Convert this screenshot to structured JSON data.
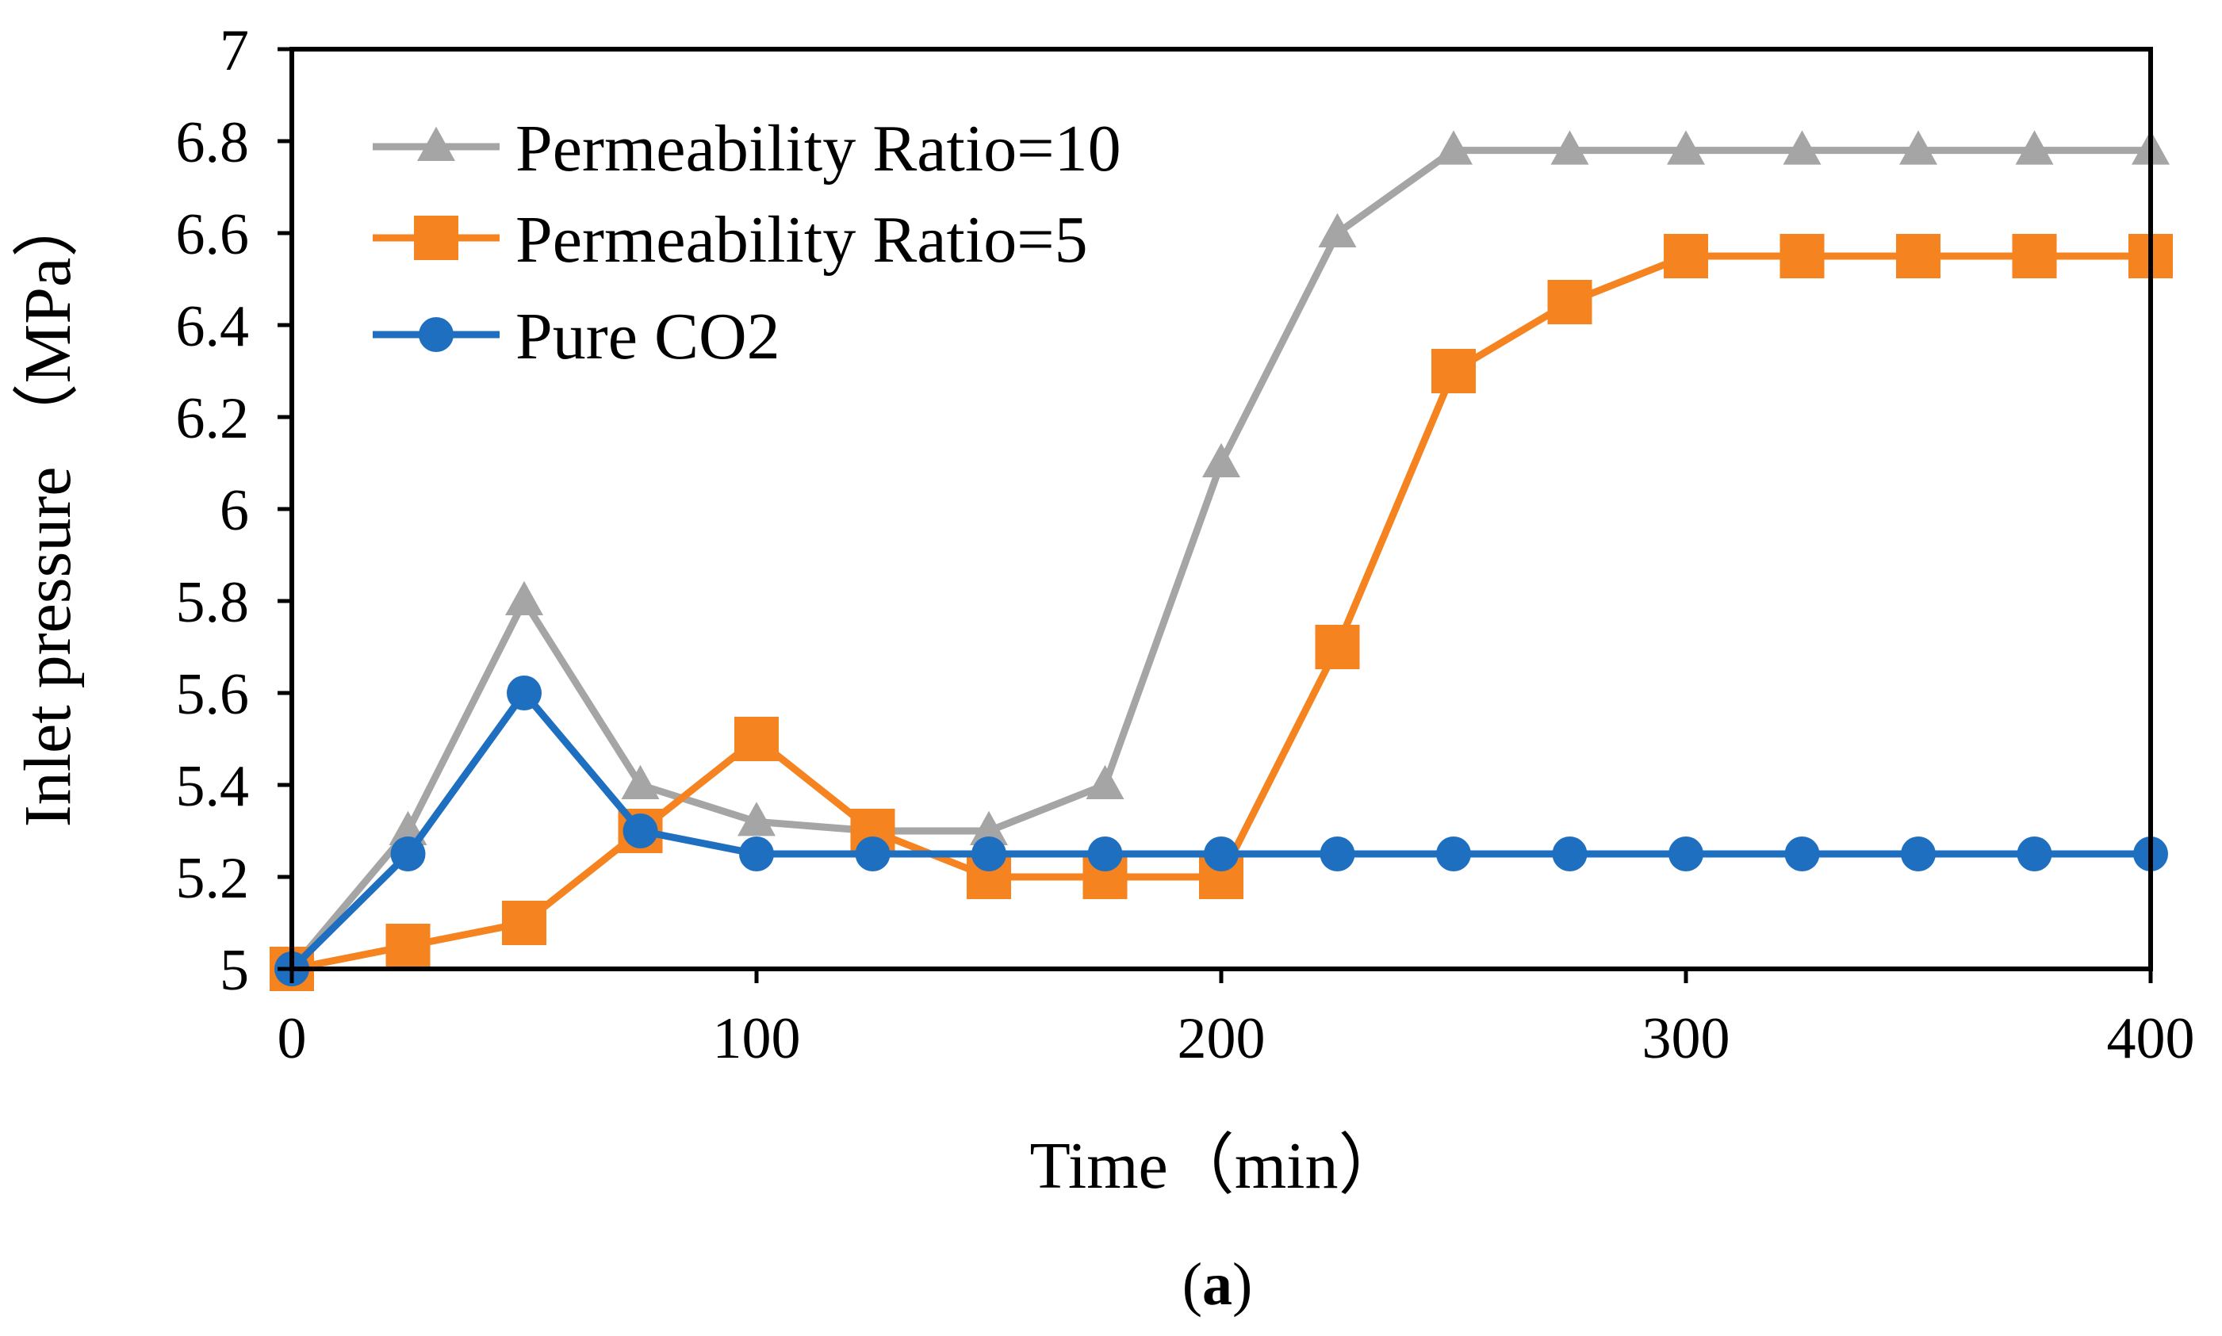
{
  "chart_data": {
    "type": "line",
    "title": "",
    "xlabel": "Time（min）",
    "ylabel": "Inlet pressure （MPa）",
    "xlim": [
      0,
      400
    ],
    "ylim": [
      5,
      7
    ],
    "xticks": [
      0,
      100,
      200,
      300,
      400
    ],
    "yticks": [
      5,
      5.2,
      5.4,
      5.6,
      5.8,
      6,
      6.2,
      6.4,
      6.6,
      6.8,
      7
    ],
    "x_tick_labels": [
      "0",
      "100",
      "200",
      "300",
      "400"
    ],
    "y_tick_labels": [
      "5",
      "5.2",
      "5.4",
      "5.6",
      "5.8",
      "6",
      "6.2",
      "6.4",
      "6.6",
      "6.8",
      "7"
    ],
    "grid": false,
    "legend_position": "top-left",
    "x": [
      0,
      25,
      50,
      75,
      100,
      125,
      150,
      175,
      200,
      225,
      250,
      275,
      300,
      325,
      350,
      375,
      400
    ],
    "series": [
      {
        "name": "Permeability Ratio=10",
        "color": "#a5a5a5",
        "marker": "triangle",
        "values": [
          5.0,
          5.3,
          5.8,
          5.4,
          5.32,
          5.3,
          5.3,
          5.4,
          6.1,
          6.6,
          6.78,
          6.78,
          6.78,
          6.78,
          6.78,
          6.78,
          6.78
        ]
      },
      {
        "name": "Permeability Ratio=5",
        "color": "#f58320",
        "marker": "square",
        "values": [
          5.0,
          5.05,
          5.1,
          5.3,
          5.5,
          5.3,
          5.2,
          5.2,
          5.2,
          5.7,
          6.3,
          6.45,
          6.55,
          6.55,
          6.55,
          6.55,
          6.55
        ]
      },
      {
        "name": "Pure CO2",
        "color": "#1f6fc0",
        "marker": "circle",
        "values": [
          5.0,
          5.25,
          5.6,
          5.3,
          5.25,
          5.25,
          5.25,
          5.25,
          5.25,
          5.25,
          5.25,
          5.25,
          5.25,
          5.25,
          5.25,
          5.25,
          5.25
        ]
      }
    ]
  },
  "caption": {
    "open": "(",
    "letter": "a",
    "close": ")"
  }
}
